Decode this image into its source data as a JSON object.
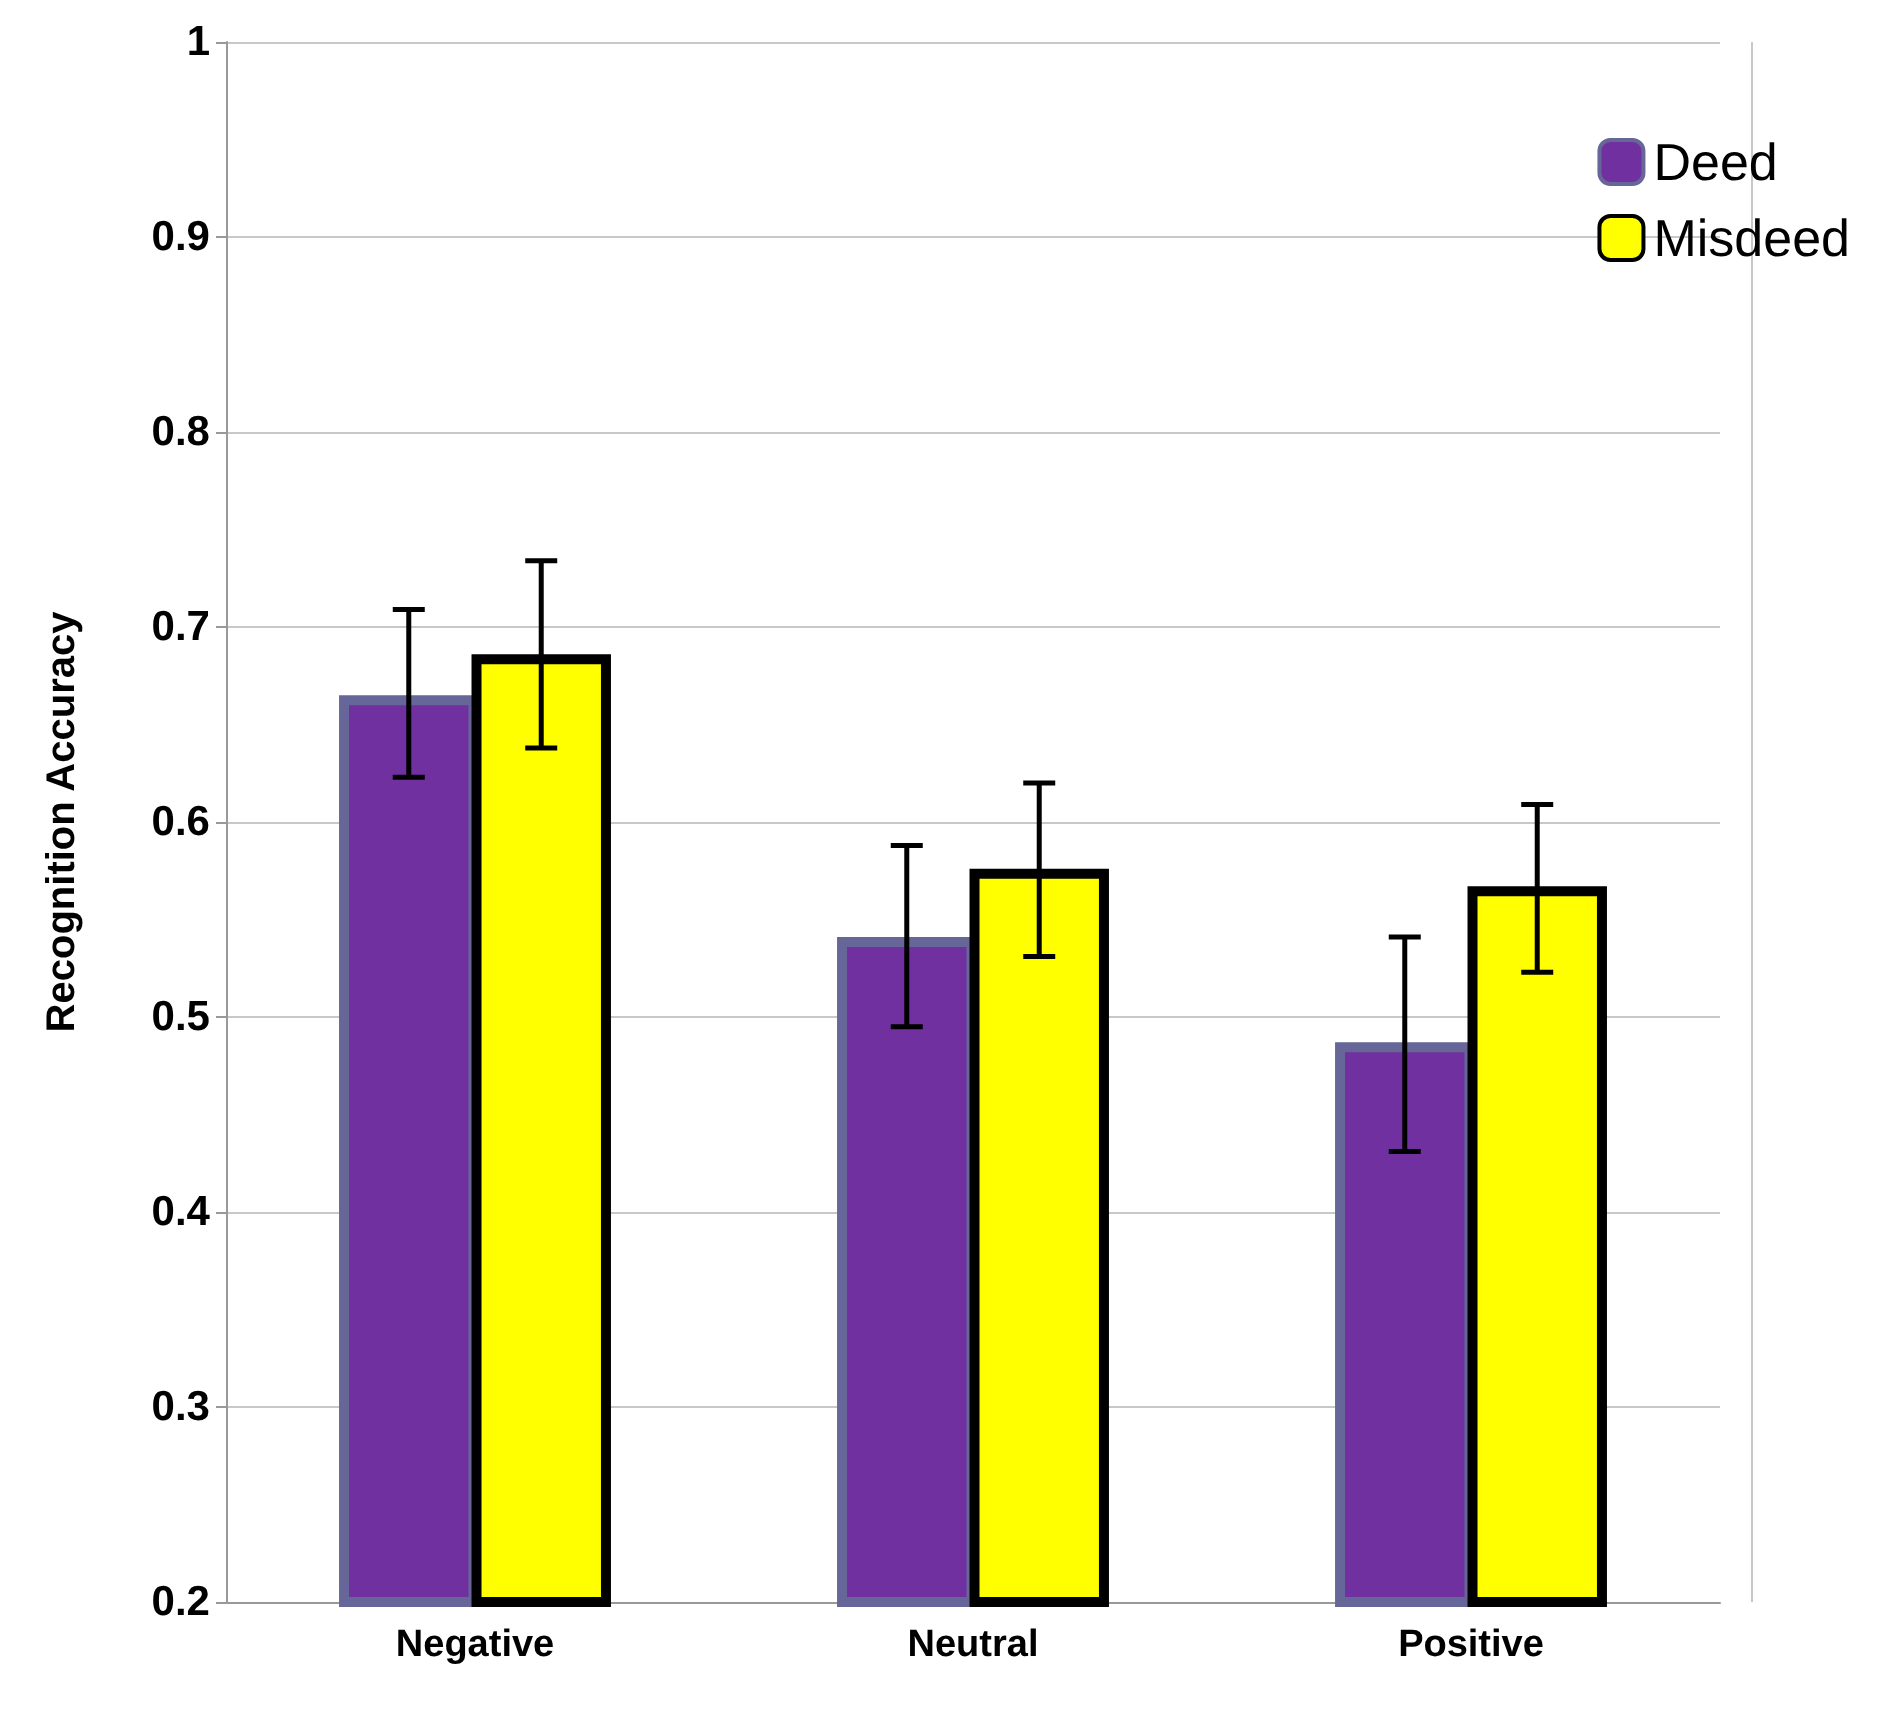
{
  "chart_data": {
    "type": "bar",
    "ylabel": "Recognition Accuracy",
    "categories": [
      "Negative",
      "Neutral",
      "Positive"
    ],
    "series": [
      {
        "name": "Deed",
        "color": "#7030a0",
        "values": [
          0.665,
          0.541,
          0.487
        ],
        "errors": [
          [
            0.623,
            0.709
          ],
          [
            0.495,
            0.588
          ],
          [
            0.431,
            0.541
          ]
        ]
      },
      {
        "name": "Misdeed",
        "color": "#ffff00",
        "values": [
          0.686,
          0.576,
          0.567
        ],
        "errors": [
          [
            0.638,
            0.734
          ],
          [
            0.531,
            0.62
          ],
          [
            0.523,
            0.609
          ]
        ]
      }
    ],
    "ylim": [
      0.2,
      1
    ],
    "yticks": [
      0.2,
      0.3,
      0.4,
      0.5,
      0.6,
      0.7,
      0.8,
      0.9,
      1
    ],
    "grid": "y",
    "legend": "top right"
  }
}
